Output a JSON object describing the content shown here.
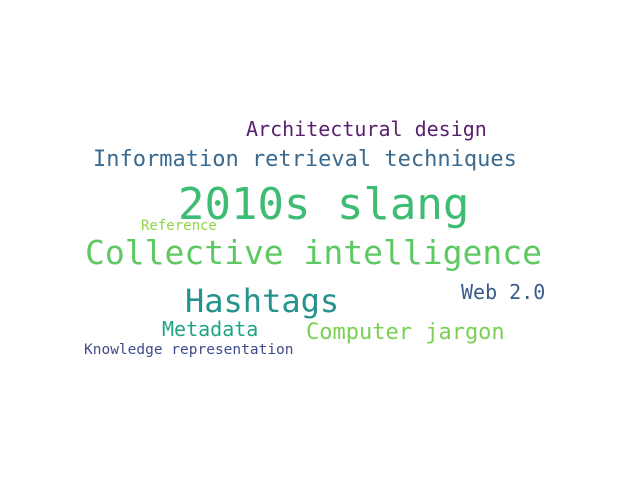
{
  "word_cloud": {
    "background_color": "#ffffff",
    "words": [
      {
        "id": "w-slang",
        "text": "2010s slang",
        "color": "#3dbc74"
      },
      {
        "id": "w-collective",
        "text": "Collective intelligence",
        "color": "#5ec962"
      },
      {
        "id": "w-info",
        "text": "Information retrieval techniques",
        "color": "#3b6a8e"
      },
      {
        "id": "w-arch",
        "text": "Architectural design",
        "color": "#5a2070"
      },
      {
        "id": "w-hashtags",
        "text": "Hashtags",
        "color": "#26928c"
      },
      {
        "id": "w-web",
        "text": "Web 2.0",
        "color": "#3a5a8c"
      },
      {
        "id": "w-metadata",
        "text": "Metadata",
        "color": "#20a486"
      },
      {
        "id": "w-jargon",
        "text": "Computer jargon",
        "color": "#7ad151"
      },
      {
        "id": "w-reference",
        "text": "Reference",
        "color": "#8ed645"
      },
      {
        "id": "w-knowledge",
        "text": "Knowledge representation",
        "color": "#3f4a8a"
      }
    ]
  }
}
